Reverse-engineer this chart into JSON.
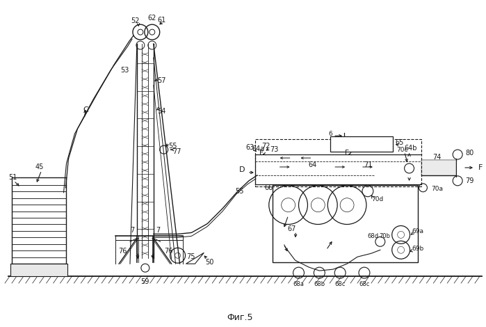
{
  "title": "Фиг.5",
  "bg_color": "#ffffff",
  "line_color": "#1a1a1a",
  "figsize": [
    6.99,
    4.7
  ],
  "dpi": 100,
  "xlim": [
    0,
    699
  ],
  "ylim": [
    0,
    470
  ]
}
